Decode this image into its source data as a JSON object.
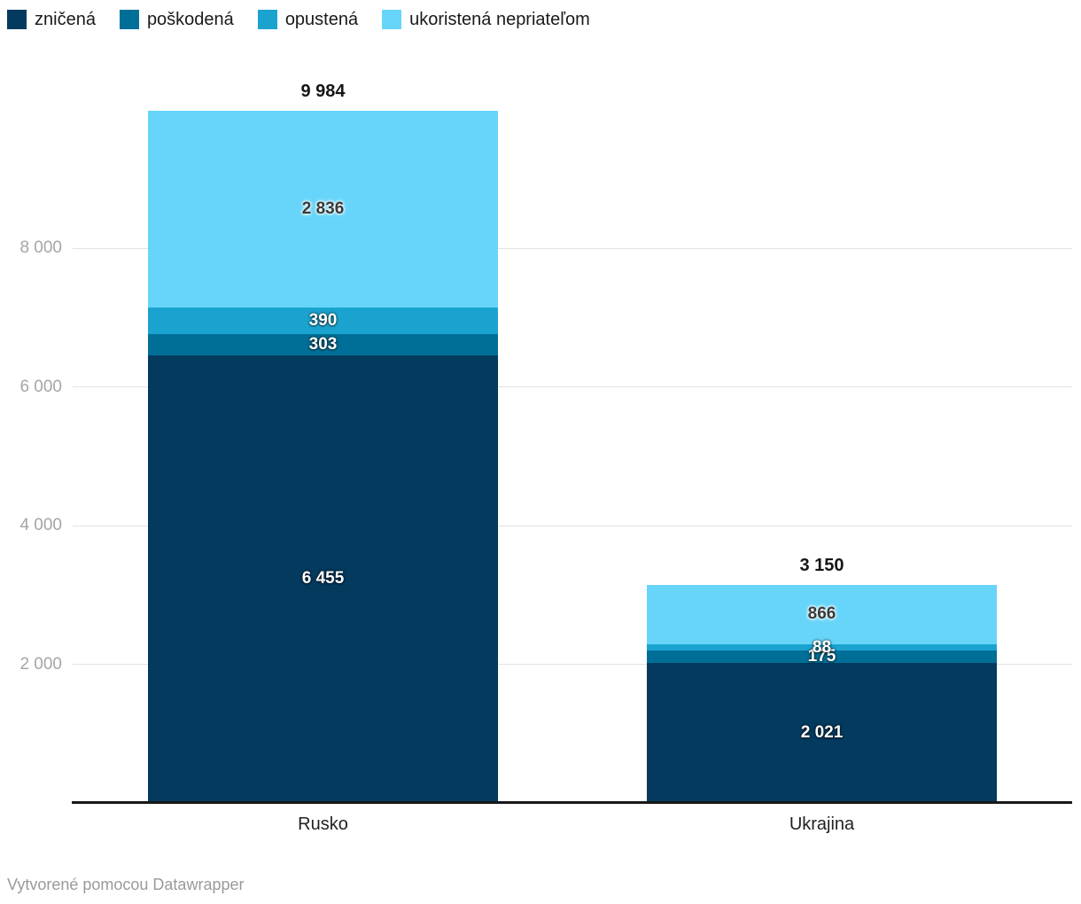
{
  "chart_data": {
    "type": "bar",
    "stacked": true,
    "orientation": "vertical",
    "categories": [
      "Rusko",
      "Ukrajina"
    ],
    "series": [
      {
        "name": "zničená",
        "color": "#043A5E",
        "label_color": "#ffffff",
        "values": [
          6455,
          2021
        ],
        "value_labels": [
          "6 455",
          "2 021"
        ]
      },
      {
        "name": "poškodená",
        "color": "#006F97",
        "label_color": "#ffffff",
        "values": [
          303,
          175
        ],
        "value_labels": [
          "303",
          "175"
        ]
      },
      {
        "name": "opustená",
        "color": "#1BA3CF",
        "label_color": "#ffffff",
        "values": [
          390,
          88
        ],
        "value_labels": [
          "390",
          "88"
        ]
      },
      {
        "name": "ukoristená nepriateľom",
        "color": "#67D5F9",
        "label_color": "#3a3a3a",
        "values": [
          2836,
          866
        ],
        "value_labels": [
          "2 836",
          "866"
        ]
      }
    ],
    "totals": {
      "values": [
        9984,
        3150
      ],
      "labels": [
        "9 984",
        "3 150"
      ]
    },
    "yticks": [
      {
        "value": 2000,
        "label": "2 000"
      },
      {
        "value": 4000,
        "label": "4 000"
      },
      {
        "value": 6000,
        "label": "6 000"
      },
      {
        "value": 8000,
        "label": "8 000"
      }
    ],
    "ylim": [
      0,
      10000
    ],
    "grid": "horizontal",
    "legend_position": "top"
  },
  "colors": {
    "gridline": "#e3e3e3",
    "tick_label": "#a5a5a5",
    "axis_line": "#18181a",
    "total_label": "#161616",
    "category_label": "#222222",
    "footer_text": "#9a9a9a"
  },
  "footer": {
    "credit": "Vytvorené pomocou Datawrapper"
  }
}
